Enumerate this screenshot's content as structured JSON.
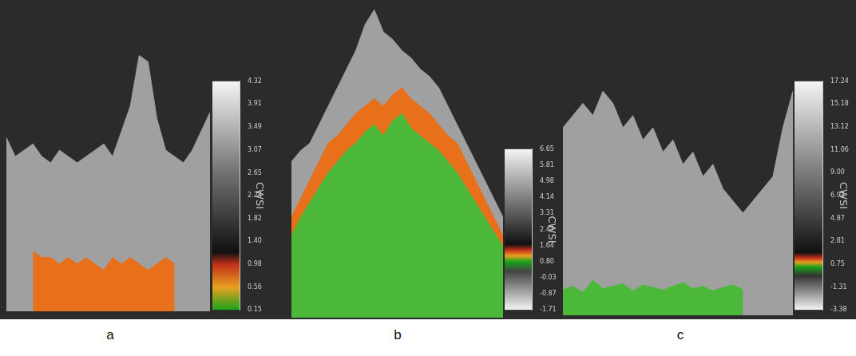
{
  "chart_data": [
    {
      "type": "line",
      "panel": "a",
      "ylim": [
        0.15,
        4.32
      ],
      "tick_labels": false,
      "series": [
        {
          "color": "#a0a0a0",
          "values": [
            2.9,
            2.6,
            2.7,
            2.8,
            2.6,
            2.5,
            2.7,
            2.6,
            2.5,
            2.6,
            2.7,
            2.8,
            2.6,
            3.0,
            3.4,
            4.2,
            4.1,
            3.2,
            2.7,
            2.6,
            2.5,
            2.7,
            3.0,
            3.3
          ]
        },
        {
          "color": "#e8701a",
          "values": [
            null,
            null,
            null,
            1.1,
            1.0,
            1.0,
            0.9,
            1.0,
            0.9,
            1.0,
            0.9,
            0.8,
            1.0,
            0.9,
            1.0,
            0.9,
            0.8,
            0.9,
            1.0,
            0.9,
            null,
            null,
            null,
            null
          ]
        }
      ],
      "colorbar": {
        "title": "CWSI",
        "range": [
          0.15,
          4.32
        ],
        "ticks": [
          0.15,
          0.56,
          0.98,
          {
            "value": 1.4,
            "label": "1.40"
          },
          1.82,
          2.24,
          2.65,
          3.07,
          3.49,
          3.91,
          4.32
        ],
        "stops": [
          {
            "value": 0.15,
            "color": "#1aa31a"
          },
          {
            "value": 0.56,
            "color": "#e8a020"
          },
          {
            "value": 0.98,
            "color": "#c0301a"
          },
          {
            "value": 1.2,
            "color": "#111111"
          },
          {
            "value": 2.6,
            "color": "#6e6e6e"
          },
          {
            "value": 4.32,
            "color": "#f5f5f5"
          }
        ]
      }
    },
    {
      "type": "line",
      "panel": "b",
      "ylim": [
        -1.71,
        6.65
      ],
      "tick_labels": false,
      "series": [
        {
          "color": "#a0a0a0",
          "values": [
            2.5,
            2.8,
            3.0,
            3.5,
            4.0,
            4.5,
            5.0,
            5.5,
            6.2,
            6.6,
            6.0,
            5.8,
            5.5,
            5.3,
            5.0,
            4.8,
            4.5,
            4.0,
            3.5,
            3.0,
            2.5,
            2.0,
            1.5,
            1.0
          ]
        },
        {
          "color": "#e8701a",
          "values": [
            1.0,
            1.5,
            2.0,
            2.5,
            3.0,
            3.2,
            3.5,
            3.8,
            4.0,
            4.2,
            4.0,
            4.3,
            4.5,
            4.2,
            4.0,
            3.8,
            3.5,
            3.2,
            3.0,
            2.5,
            2.0,
            1.5,
            1.0,
            0.5
          ]
        },
        {
          "color": "#4cb83a",
          "values": [
            0.5,
            1.0,
            1.4,
            1.8,
            2.2,
            2.5,
            2.8,
            3.0,
            3.3,
            3.5,
            3.2,
            3.6,
            3.8,
            3.4,
            3.2,
            3.0,
            2.8,
            2.5,
            2.2,
            1.8,
            1.4,
            1.0,
            0.6,
            0.2
          ]
        }
      ],
      "colorbar": {
        "title": "CWSI",
        "range": [
          -1.71,
          6.65
        ],
        "ticks": [
          -1.71,
          -0.87,
          -0.03,
          {
            "value": 0.8,
            "label": "0.80"
          },
          1.64,
          2.47,
          3.31,
          4.14,
          4.98,
          5.81,
          6.65
        ],
        "stops": [
          {
            "value": -1.71,
            "color": "#f5f5f5"
          },
          {
            "value": 0.3,
            "color": "#444444"
          },
          {
            "value": 0.8,
            "color": "#1aa31a"
          },
          {
            "value": 1.1,
            "color": "#e8a020"
          },
          {
            "value": 1.4,
            "color": "#c0301a"
          },
          {
            "value": 1.7,
            "color": "#111111"
          },
          {
            "value": 6.65,
            "color": "#f5f5f5"
          }
        ]
      }
    },
    {
      "type": "line",
      "panel": "c",
      "ylim": [
        -3.38,
        17.24
      ],
      "tick_labels": false,
      "series": [
        {
          "color": "#a0a0a0",
          "values": [
            12,
            13,
            14,
            13,
            15,
            14,
            12,
            13,
            11,
            12,
            10,
            11,
            9,
            10,
            8,
            9,
            7,
            6,
            5,
            6,
            7,
            8,
            12,
            15
          ]
        },
        {
          "color": "#4cb83a",
          "values": [
            -1.3,
            -1.0,
            -1.5,
            -0.5,
            -1.2,
            -1.0,
            -0.8,
            -1.4,
            -0.9,
            -1.1,
            -1.3,
            -1.0,
            -0.7,
            -1.2,
            -1.0,
            -1.4,
            -1.1,
            -0.9,
            -1.3,
            null,
            null,
            null,
            null,
            null
          ]
        }
      ],
      "colorbar": {
        "title": "CWSI",
        "range": [
          -3.38,
          17.24
        ],
        "ticks": [
          -3.38,
          -1.31,
          0.75,
          2.81,
          4.87,
          6.93,
          {
            "value": 9,
            "label": "9.00"
          },
          11.06,
          13.12,
          15.18,
          17.24
        ],
        "stops": [
          {
            "value": -3.38,
            "color": "#f5f5f5"
          },
          {
            "value": -0.3,
            "color": "#333333"
          },
          {
            "value": 0.5,
            "color": "#1aa31a"
          },
          {
            "value": 0.9,
            "color": "#e8a020"
          },
          {
            "value": 1.3,
            "color": "#c0301a"
          },
          {
            "value": 1.8,
            "color": "#111111"
          },
          {
            "value": 17.24,
            "color": "#f5f5f5"
          }
        ]
      }
    }
  ]
}
